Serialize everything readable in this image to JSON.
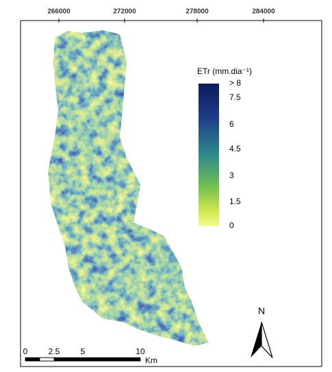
{
  "coordinates": {
    "top": [
      "266000",
      "272000",
      "278000",
      "284000"
    ]
  },
  "legend": {
    "title": "ETr (mm.dia⁻¹)",
    "labels": [
      "> 8",
      "7.5",
      "6",
      "4.5",
      "3",
      "1.5",
      "0"
    ]
  },
  "scale_bar": {
    "labels": [
      "0",
      "2.5",
      "5",
      "10"
    ],
    "unit": "Km"
  },
  "north_arrow": {
    "label": "N"
  }
}
